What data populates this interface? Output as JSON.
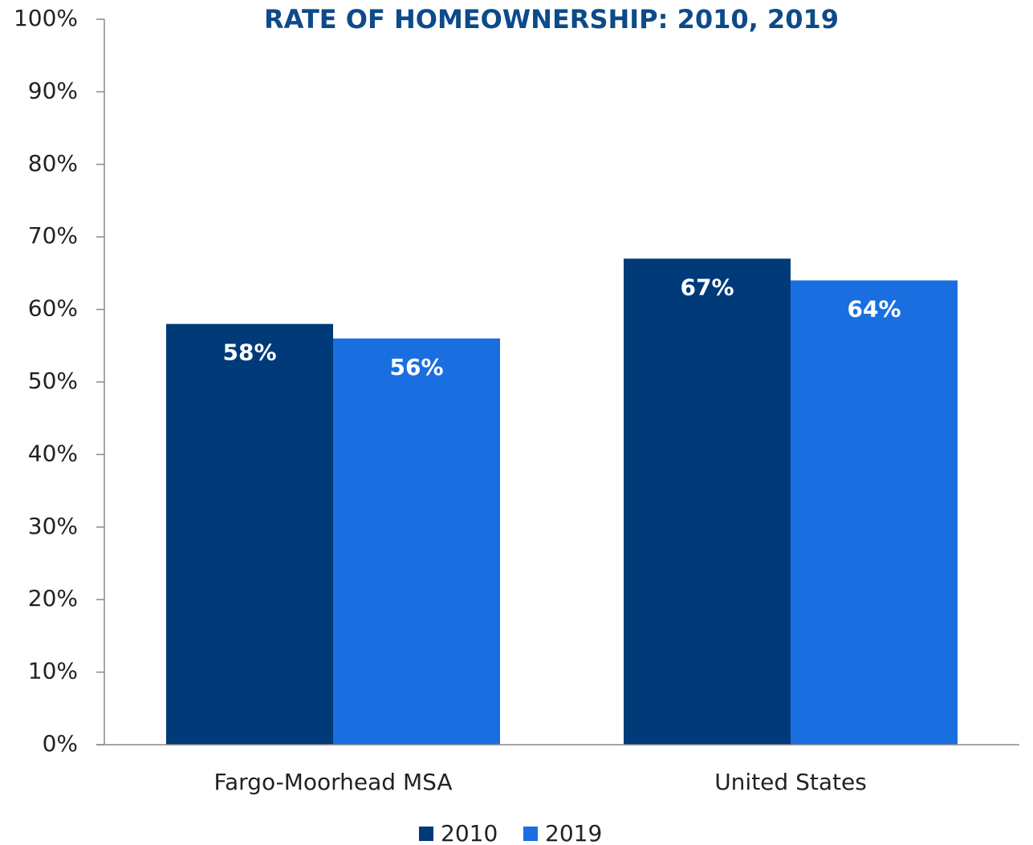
{
  "chart_data": {
    "type": "bar",
    "title": "RATE OF HOMEOWNERSHIP: 2010, 2019",
    "categories": [
      "Fargo-Moorhead MSA",
      "United States"
    ],
    "series": [
      {
        "name": "2010",
        "color": "#003a78",
        "values": [
          58,
          67
        ],
        "value_labels": [
          "58%",
          "67%"
        ]
      },
      {
        "name": "2019",
        "color": "#1a6fe0",
        "values": [
          56,
          64
        ],
        "value_labels": [
          "56%",
          "64%"
        ]
      }
    ],
    "ylim": [
      0,
      100
    ],
    "yticks": [
      {
        "value": 0,
        "label": "0%"
      },
      {
        "value": 10,
        "label": "10%"
      },
      {
        "value": 20,
        "label": "20%"
      },
      {
        "value": 30,
        "label": "30%"
      },
      {
        "value": 40,
        "label": "40%"
      },
      {
        "value": 50,
        "label": "50%"
      },
      {
        "value": 60,
        "label": "60%"
      },
      {
        "value": 70,
        "label": "70%"
      },
      {
        "value": 80,
        "label": "80%"
      },
      {
        "value": 90,
        "label": "90%"
      },
      {
        "value": 100,
        "label": "100%"
      }
    ],
    "grid": false,
    "legend": "bottom"
  }
}
